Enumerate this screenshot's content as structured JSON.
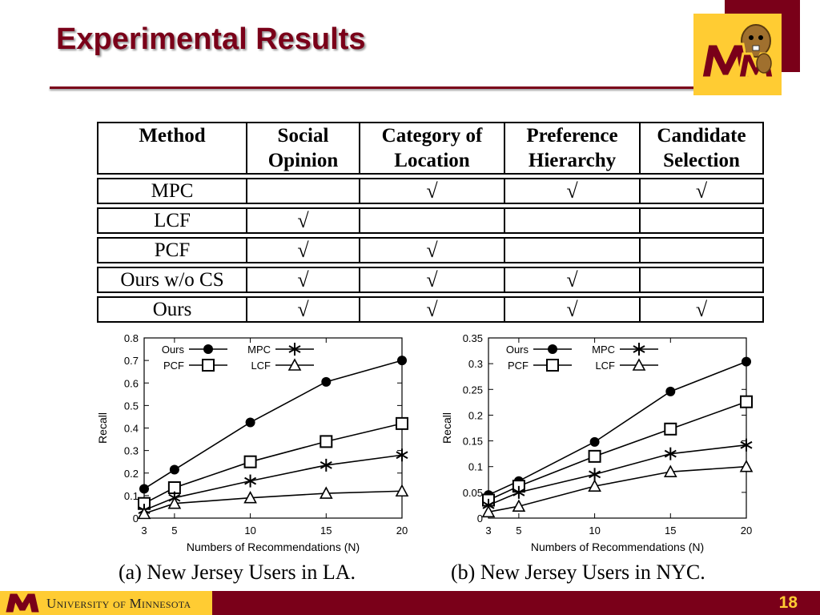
{
  "slide": {
    "title": "Experimental Results",
    "page_number": "18",
    "footer_university": "University of Minnesota",
    "colors": {
      "maroon": "#7a0019",
      "gold": "#ffcc33"
    }
  },
  "table": {
    "headers": [
      {
        "l1": "Method",
        "l2": ""
      },
      {
        "l1": "Social",
        "l2": "Opinion"
      },
      {
        "l1": "Category of",
        "l2": "Location"
      },
      {
        "l1": "Preference",
        "l2": "Hierarchy"
      },
      {
        "l1": "Candidate",
        "l2": "Selection"
      }
    ],
    "rows": [
      {
        "method": "MPC",
        "cells": [
          "",
          "√",
          "√",
          "√"
        ]
      },
      {
        "method": "LCF",
        "cells": [
          "√",
          "",
          "",
          ""
        ]
      },
      {
        "method": "PCF",
        "cells": [
          "√",
          "√",
          "",
          ""
        ]
      },
      {
        "method": "Ours w/o CS",
        "cells": [
          "√",
          "√",
          "√",
          ""
        ]
      },
      {
        "method": "Ours",
        "cells": [
          "√",
          "√",
          "√",
          "√"
        ]
      }
    ]
  },
  "chart_data": [
    {
      "type": "line",
      "caption": "(a) New Jersey Users in LA.",
      "xlabel": "Numbers of Recommendations (N)",
      "ylabel": "Recall",
      "x": [
        3,
        5,
        10,
        15,
        20
      ],
      "x_ticks": [
        "3",
        "5",
        "10",
        "15",
        "20"
      ],
      "ylim": [
        0,
        0.8
      ],
      "y_ticks": [
        "0",
        "0.1",
        "0.2",
        "0.3",
        "0.4",
        "0.5",
        "0.6",
        "0.7",
        "0.8"
      ],
      "legend_position": "top-left",
      "grid": false,
      "series": [
        {
          "name": "Ours",
          "marker": "filled-circle",
          "values": [
            0.13,
            0.215,
            0.425,
            0.605,
            0.7
          ]
        },
        {
          "name": "PCF",
          "marker": "open-square",
          "values": [
            0.065,
            0.135,
            0.25,
            0.34,
            0.42
          ]
        },
        {
          "name": "MPC",
          "marker": "asterisk",
          "values": [
            0.035,
            0.09,
            0.165,
            0.235,
            0.28
          ]
        },
        {
          "name": "LCF",
          "marker": "open-triangle",
          "values": [
            0.02,
            0.065,
            0.09,
            0.11,
            0.12
          ]
        }
      ]
    },
    {
      "type": "line",
      "caption": "(b) New Jersey Users in NYC.",
      "xlabel": "Numbers of Recommendations (N)",
      "ylabel": "Recall",
      "x": [
        3,
        5,
        10,
        15,
        20
      ],
      "x_ticks": [
        "3",
        "5",
        "10",
        "15",
        "20"
      ],
      "ylim": [
        0,
        0.35
      ],
      "y_ticks": [
        "0",
        "0.05",
        "0.1",
        "0.15",
        "0.2",
        "0.25",
        "0.3",
        "0.35"
      ],
      "legend_position": "top-left",
      "grid": false,
      "series": [
        {
          "name": "Ours",
          "marker": "filled-circle",
          "values": [
            0.045,
            0.072,
            0.148,
            0.246,
            0.304
          ]
        },
        {
          "name": "PCF",
          "marker": "open-square",
          "values": [
            0.035,
            0.062,
            0.12,
            0.173,
            0.226
          ]
        },
        {
          "name": "MPC",
          "marker": "asterisk",
          "values": [
            0.025,
            0.05,
            0.085,
            0.125,
            0.142
          ]
        },
        {
          "name": "LCF",
          "marker": "open-triangle",
          "values": [
            0.012,
            0.023,
            0.062,
            0.09,
            0.1
          ]
        }
      ]
    }
  ]
}
